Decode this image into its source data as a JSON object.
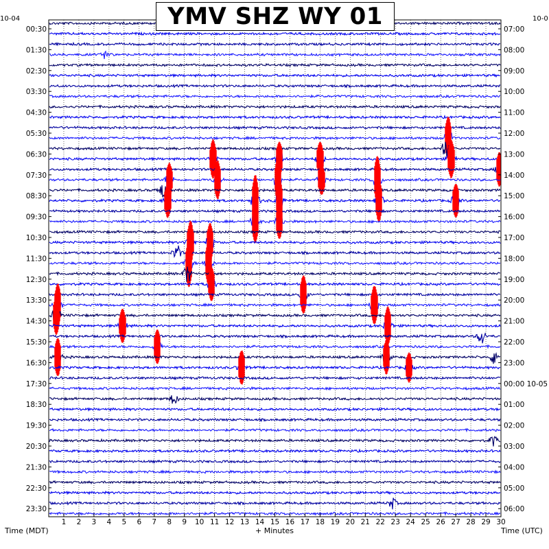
{
  "chart_data": {
    "type": "line",
    "title": "YMV SHZ WY 01",
    "left_date": "10-04",
    "right_date": "10-0",
    "right_date_change": "10-05",
    "xlabel": "+ Minutes",
    "left_axis_label": "Time (MDT)",
    "right_axis_label": "Time (UTC)",
    "xlim": [
      0,
      30
    ],
    "x_ticks": [
      "1",
      "2",
      "3",
      "4",
      "5",
      "6",
      "7",
      "8",
      "9",
      "10",
      "11",
      "12",
      "13",
      "14",
      "15",
      "16",
      "17",
      "18",
      "19",
      "20",
      "21",
      "22",
      "23",
      "24",
      "25",
      "26",
      "27",
      "28",
      "29",
      "30"
    ],
    "left_tick_labels": [
      "00:30",
      "01:30",
      "02:30",
      "03:30",
      "04:30",
      "05:30",
      "06:30",
      "07:30",
      "08:30",
      "09:30",
      "10:30",
      "11:30",
      "12:30",
      "13:30",
      "14:30",
      "15:30",
      "16:30",
      "17:30",
      "18:30",
      "19:30",
      "20:30",
      "21:30",
      "22:30",
      "23:30"
    ],
    "right_tick_labels": [
      "07:00",
      "08:00",
      "09:00",
      "10:00",
      "11:00",
      "12:00",
      "13:00",
      "14:00",
      "15:00",
      "16:00",
      "17:00",
      "18:00",
      "19:00",
      "20:00",
      "21:00",
      "22:00",
      "23:00",
      "00:00",
      "01:00",
      "02:00",
      "03:00",
      "04:00",
      "05:00",
      "06:00"
    ],
    "trace_count": 48,
    "trace_colors": [
      "#000066",
      "#0000ee",
      "#0000a0",
      "#1a1aff"
    ],
    "clip_color": "#ff0000",
    "grid": "dotted-vertical-each-minute",
    "events": [
      {
        "row": 3,
        "minute": 3.8,
        "amp": 6,
        "clip": false
      },
      {
        "row": 11,
        "minute": 26.5,
        "amp": 18,
        "clip": true
      },
      {
        "row": 12,
        "minute": 26.3,
        "amp": 14,
        "clip": false
      },
      {
        "row": 13,
        "minute": 10.9,
        "amp": 16,
        "clip": true
      },
      {
        "row": 13,
        "minute": 15.3,
        "amp": 14,
        "clip": true
      },
      {
        "row": 13,
        "minute": 18.0,
        "amp": 14,
        "clip": true
      },
      {
        "row": 13,
        "minute": 26.7,
        "amp": 16,
        "clip": true
      },
      {
        "row": 14,
        "minute": 29.9,
        "amp": 14,
        "clip": true
      },
      {
        "row": 15,
        "minute": 8.0,
        "amp": 14,
        "clip": true
      },
      {
        "row": 15,
        "minute": 11.2,
        "amp": 16,
        "clip": true
      },
      {
        "row": 15,
        "minute": 15.2,
        "amp": 18,
        "clip": true
      },
      {
        "row": 15,
        "minute": 18.1,
        "amp": 12,
        "clip": true
      },
      {
        "row": 15,
        "minute": 21.8,
        "amp": 20,
        "clip": true
      },
      {
        "row": 16,
        "minute": 7.5,
        "amp": 12,
        "clip": false
      },
      {
        "row": 17,
        "minute": 7.9,
        "amp": 14,
        "clip": true
      },
      {
        "row": 17,
        "minute": 13.7,
        "amp": 22,
        "clip": true
      },
      {
        "row": 17,
        "minute": 15.3,
        "amp": 18,
        "clip": true
      },
      {
        "row": 17,
        "minute": 21.9,
        "amp": 18,
        "clip": true
      },
      {
        "row": 17,
        "minute": 27.0,
        "amp": 14,
        "clip": true
      },
      {
        "row": 19,
        "minute": 13.7,
        "amp": 18,
        "clip": true
      },
      {
        "row": 19,
        "minute": 15.3,
        "amp": 14,
        "clip": true
      },
      {
        "row": 21,
        "minute": 9.4,
        "amp": 18,
        "clip": true
      },
      {
        "row": 21,
        "minute": 10.7,
        "amp": 16,
        "clip": true
      },
      {
        "row": 22,
        "minute": 8.5,
        "amp": 12,
        "clip": false
      },
      {
        "row": 23,
        "minute": 9.3,
        "amp": 20,
        "clip": true
      },
      {
        "row": 23,
        "minute": 10.6,
        "amp": 18,
        "clip": true
      },
      {
        "row": 24,
        "minute": 9.2,
        "amp": 14,
        "clip": false
      },
      {
        "row": 25,
        "minute": 10.8,
        "amp": 14,
        "clip": true
      },
      {
        "row": 26,
        "minute": 16.9,
        "amp": 16,
        "clip": true
      },
      {
        "row": 27,
        "minute": 0.6,
        "amp": 18,
        "clip": true
      },
      {
        "row": 27,
        "minute": 21.6,
        "amp": 16,
        "clip": true
      },
      {
        "row": 28,
        "minute": 0.5,
        "amp": 16,
        "clip": true
      },
      {
        "row": 29,
        "minute": 4.9,
        "amp": 14,
        "clip": true
      },
      {
        "row": 29,
        "minute": 22.5,
        "amp": 16,
        "clip": true
      },
      {
        "row": 30,
        "minute": 28.7,
        "amp": 12,
        "clip": false
      },
      {
        "row": 31,
        "minute": 7.2,
        "amp": 14,
        "clip": true
      },
      {
        "row": 32,
        "minute": 0.6,
        "amp": 16,
        "clip": true
      },
      {
        "row": 32,
        "minute": 22.4,
        "amp": 14,
        "clip": true
      },
      {
        "row": 32,
        "minute": 29.6,
        "amp": 14,
        "clip": false
      },
      {
        "row": 33,
        "minute": 12.8,
        "amp": 14,
        "clip": true
      },
      {
        "row": 33,
        "minute": 23.9,
        "amp": 12,
        "clip": true
      },
      {
        "row": 36,
        "minute": 8.3,
        "amp": 8,
        "clip": false
      },
      {
        "row": 40,
        "minute": 29.5,
        "amp": 8,
        "clip": false
      },
      {
        "row": 46,
        "minute": 22.8,
        "amp": 8,
        "clip": false
      }
    ]
  }
}
